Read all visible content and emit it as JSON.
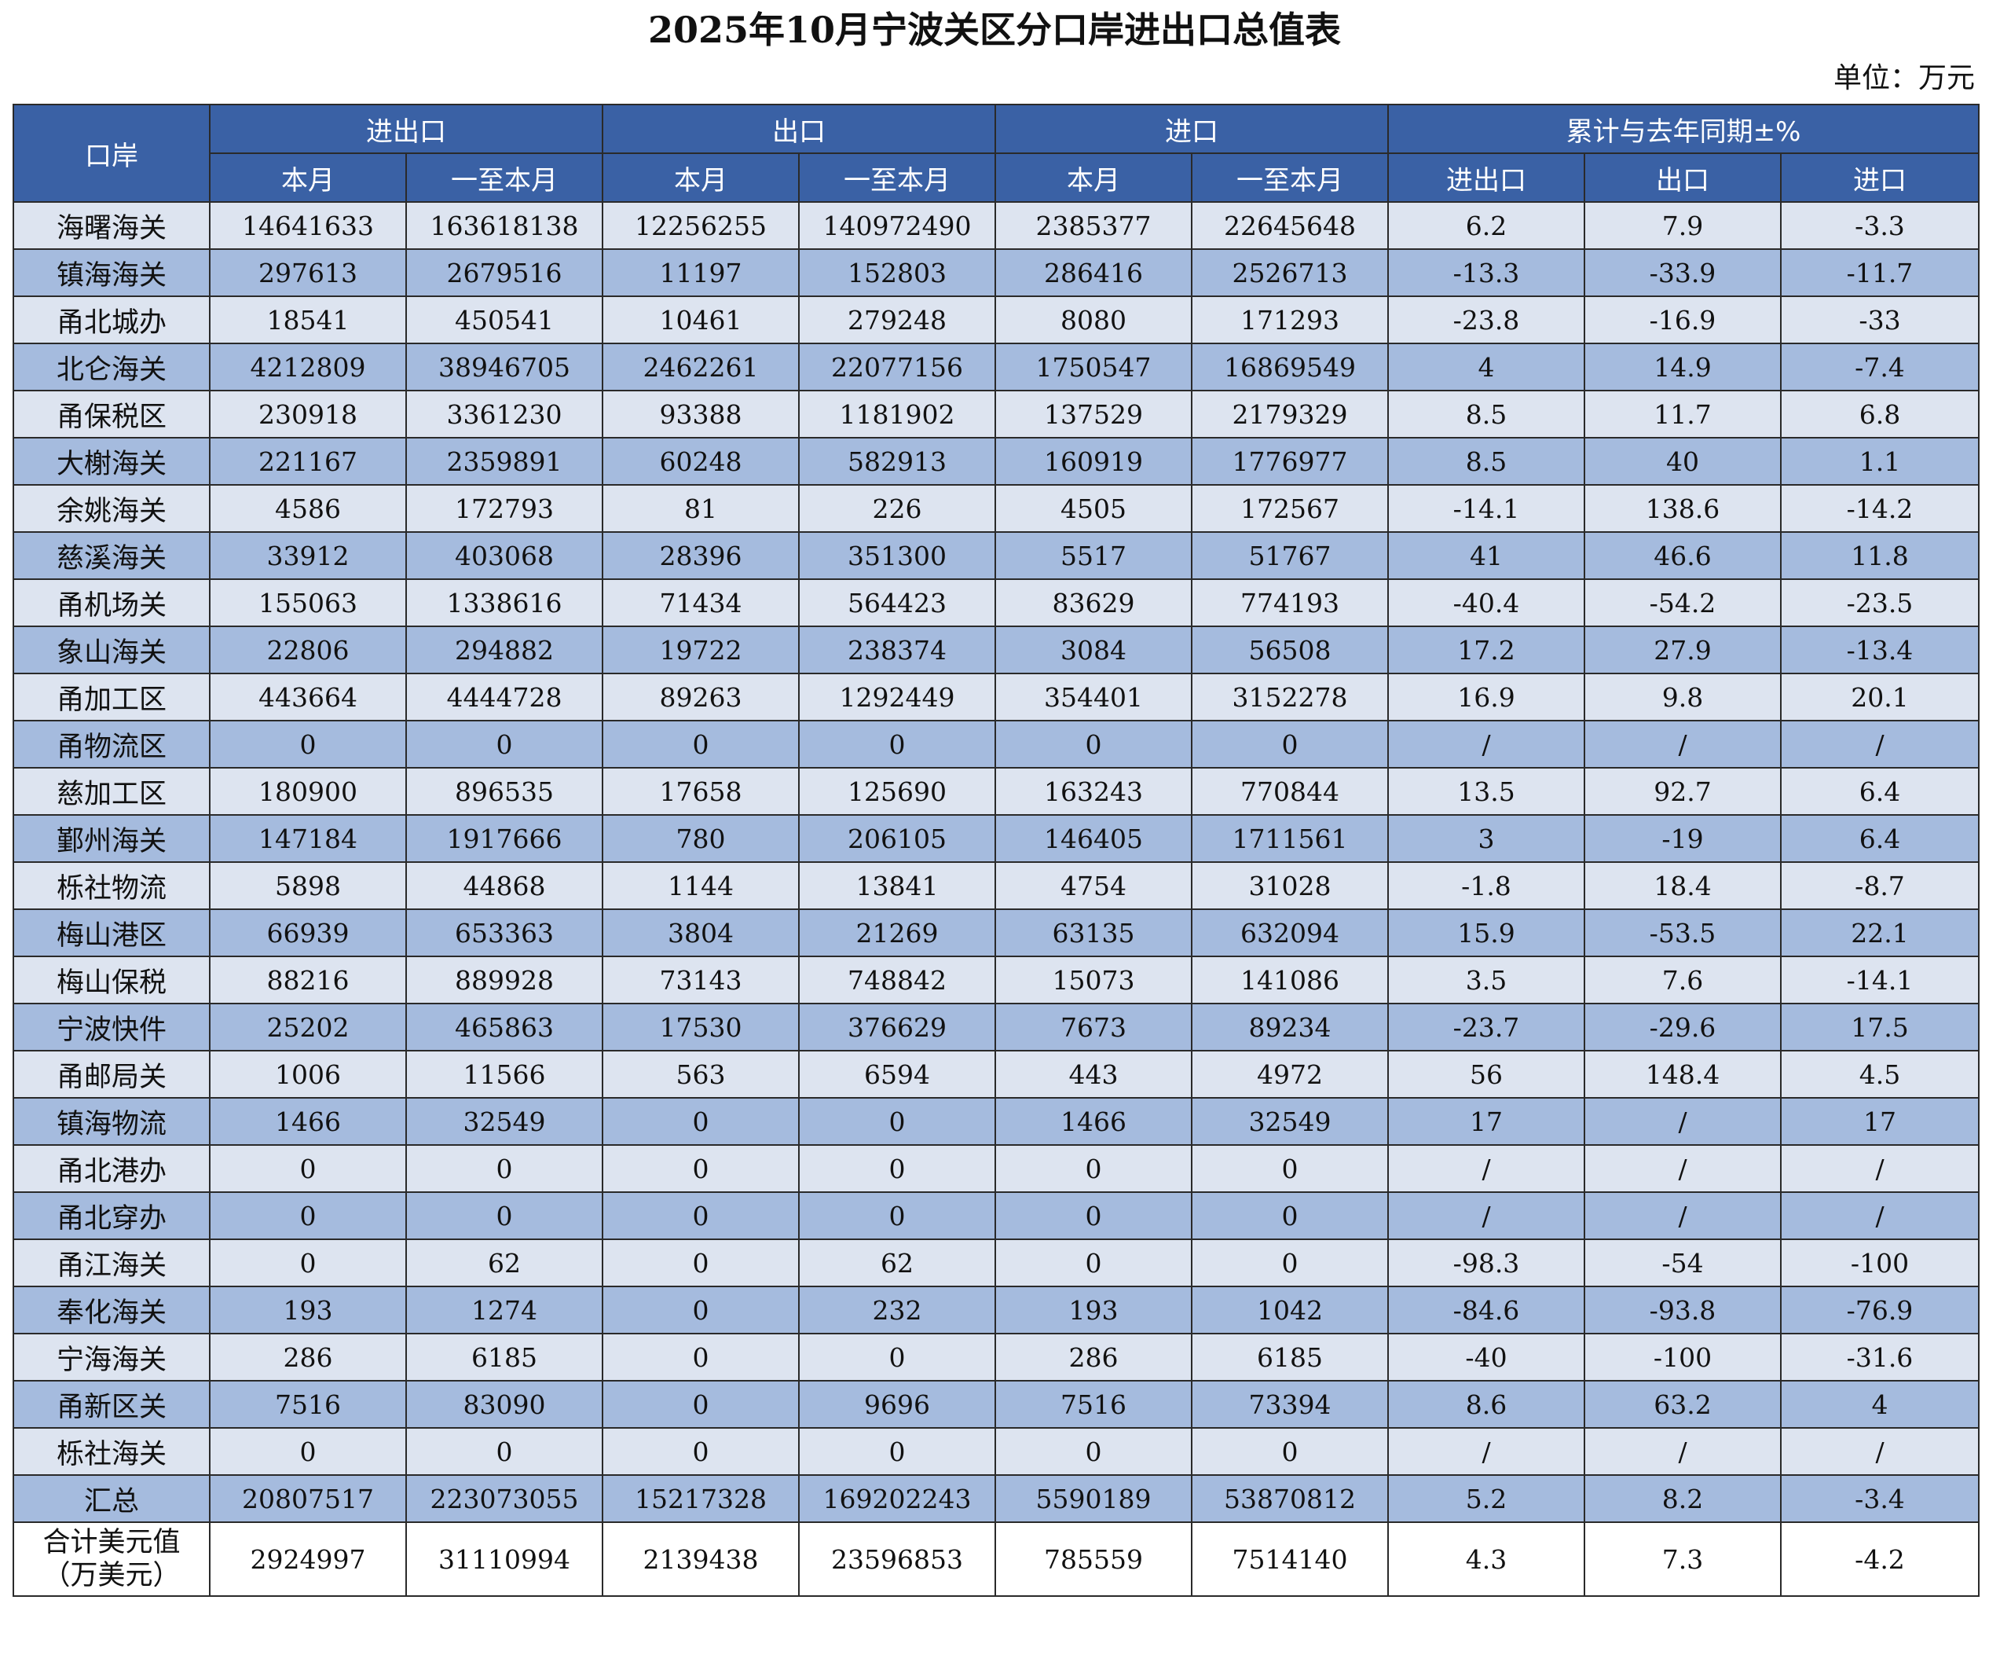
{
  "title": "2025年10月宁波关区分口岸进出口总值表",
  "unit": "单位：万元",
  "header": {
    "port": "口岸",
    "groups": [
      "进出口",
      "出口",
      "进口",
      "累计与去年同期±%"
    ],
    "sub": [
      "本月",
      "一至本月",
      "本月",
      "一至本月",
      "本月",
      "一至本月",
      "进出口",
      "出口",
      "进口"
    ]
  },
  "rows": [
    [
      "海曙海关",
      "14641633",
      "163618138",
      "12256255",
      "140972490",
      "2385377",
      "22645648",
      "6.2",
      "7.9",
      "-3.3"
    ],
    [
      "镇海海关",
      "297613",
      "2679516",
      "11197",
      "152803",
      "286416",
      "2526713",
      "-13.3",
      "-33.9",
      "-11.7"
    ],
    [
      "甬北城办",
      "18541",
      "450541",
      "10461",
      "279248",
      "8080",
      "171293",
      "-23.8",
      "-16.9",
      "-33"
    ],
    [
      "北仑海关",
      "4212809",
      "38946705",
      "2462261",
      "22077156",
      "1750547",
      "16869549",
      "4",
      "14.9",
      "-7.4"
    ],
    [
      "甬保税区",
      "230918",
      "3361230",
      "93388",
      "1181902",
      "137529",
      "2179329",
      "8.5",
      "11.7",
      "6.8"
    ],
    [
      "大榭海关",
      "221167",
      "2359891",
      "60248",
      "582913",
      "160919",
      "1776977",
      "8.5",
      "40",
      "1.1"
    ],
    [
      "余姚海关",
      "4586",
      "172793",
      "81",
      "226",
      "4505",
      "172567",
      "-14.1",
      "138.6",
      "-14.2"
    ],
    [
      "慈溪海关",
      "33912",
      "403068",
      "28396",
      "351300",
      "5517",
      "51767",
      "41",
      "46.6",
      "11.8"
    ],
    [
      "甬机场关",
      "155063",
      "1338616",
      "71434",
      "564423",
      "83629",
      "774193",
      "-40.4",
      "-54.2",
      "-23.5"
    ],
    [
      "象山海关",
      "22806",
      "294882",
      "19722",
      "238374",
      "3084",
      "56508",
      "17.2",
      "27.9",
      "-13.4"
    ],
    [
      "甬加工区",
      "443664",
      "4444728",
      "89263",
      "1292449",
      "354401",
      "3152278",
      "16.9",
      "9.8",
      "20.1"
    ],
    [
      "甬物流区",
      "0",
      "0",
      "0",
      "0",
      "0",
      "0",
      "/",
      "/",
      "/"
    ],
    [
      "慈加工区",
      "180900",
      "896535",
      "17658",
      "125690",
      "163243",
      "770844",
      "13.5",
      "92.7",
      "6.4"
    ],
    [
      "鄞州海关",
      "147184",
      "1917666",
      "780",
      "206105",
      "146405",
      "1711561",
      "3",
      "-19",
      "6.4"
    ],
    [
      "栎社物流",
      "5898",
      "44868",
      "1144",
      "13841",
      "4754",
      "31028",
      "-1.8",
      "18.4",
      "-8.7"
    ],
    [
      "梅山港区",
      "66939",
      "653363",
      "3804",
      "21269",
      "63135",
      "632094",
      "15.9",
      "-53.5",
      "22.1"
    ],
    [
      "梅山保税",
      "88216",
      "889928",
      "73143",
      "748842",
      "15073",
      "141086",
      "3.5",
      "7.6",
      "-14.1"
    ],
    [
      "宁波快件",
      "25202",
      "465863",
      "17530",
      "376629",
      "7673",
      "89234",
      "-23.7",
      "-29.6",
      "17.5"
    ],
    [
      "甬邮局关",
      "1006",
      "11566",
      "563",
      "6594",
      "443",
      "4972",
      "56",
      "148.4",
      "4.5"
    ],
    [
      "镇海物流",
      "1466",
      "32549",
      "0",
      "0",
      "1466",
      "32549",
      "17",
      "/",
      "17"
    ],
    [
      "甬北港办",
      "0",
      "0",
      "0",
      "0",
      "0",
      "0",
      "/",
      "/",
      "/"
    ],
    [
      "甬北穿办",
      "0",
      "0",
      "0",
      "0",
      "0",
      "0",
      "/",
      "/",
      "/"
    ],
    [
      "甬江海关",
      "0",
      "62",
      "0",
      "62",
      "0",
      "0",
      "-98.3",
      "-54",
      "-100"
    ],
    [
      "奉化海关",
      "193",
      "1274",
      "0",
      "232",
      "193",
      "1042",
      "-84.6",
      "-93.8",
      "-76.9"
    ],
    [
      "宁海海关",
      "286",
      "6185",
      "0",
      "0",
      "286",
      "6185",
      "-40",
      "-100",
      "-31.6"
    ],
    [
      "甬新区关",
      "7516",
      "83090",
      "0",
      "9696",
      "7516",
      "73394",
      "8.6",
      "63.2",
      "4"
    ],
    [
      "栎社海关",
      "0",
      "0",
      "0",
      "0",
      "0",
      "0",
      "/",
      "/",
      "/"
    ],
    [
      "汇总",
      "20807517",
      "223073055",
      "15217328",
      "169202243",
      "5590189",
      "53870812",
      "5.2",
      "8.2",
      "-3.4"
    ]
  ],
  "footer": {
    "name_line1": "合计美元值",
    "name_line2": "（万美元）",
    "values": [
      "2924997",
      "31110994",
      "2139438",
      "23596853",
      "785559",
      "7514140",
      "4.3",
      "7.3",
      "-4.2"
    ]
  }
}
